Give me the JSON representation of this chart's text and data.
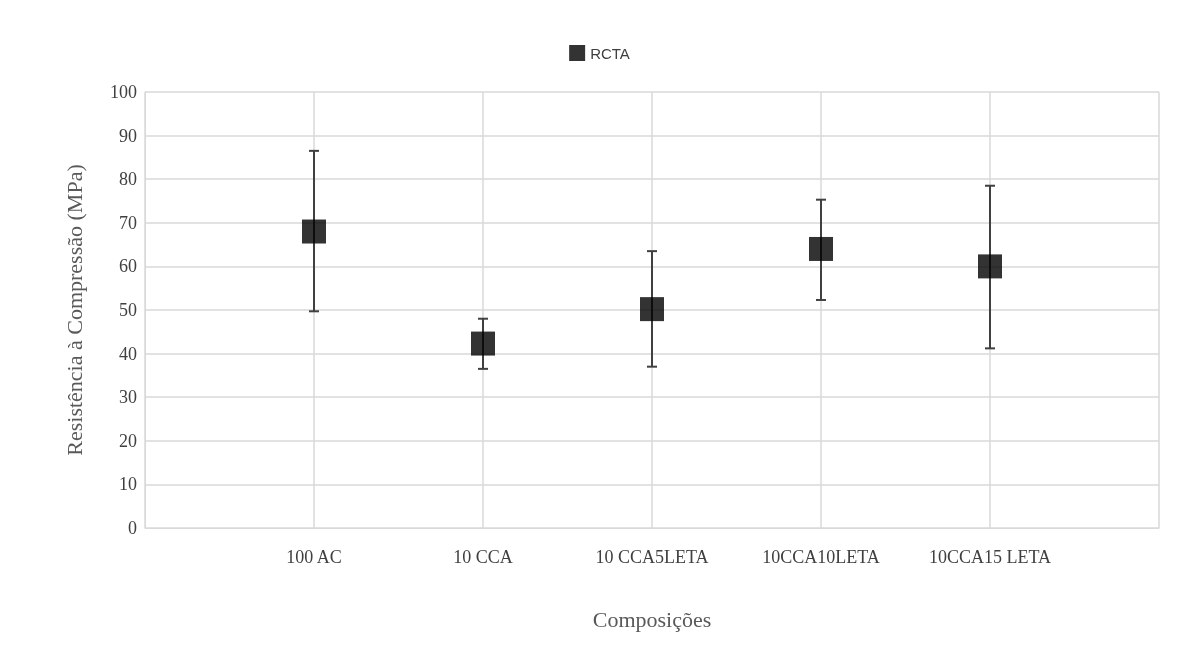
{
  "chart_data": {
    "type": "scatter",
    "xlabel": "Composições",
    "ylabel": "Resistência à Compressão (MPa)",
    "categories": [
      null,
      "100 AC",
      "10 CCA",
      "10 CCA5LETA",
      "10CCA10LETA",
      "10CCA15 LETA",
      null
    ],
    "series": [
      {
        "name": "RCTA",
        "color": "#000000",
        "values": [
          null,
          68,
          42.3,
          50.2,
          64,
          60,
          null
        ],
        "errors": [
          null,
          [
            49.7,
            86.5
          ],
          [
            36.5,
            48
          ],
          [
            37,
            63.5
          ],
          [
            52.3,
            75.3
          ],
          [
            41.2,
            78.5
          ],
          null
        ]
      }
    ],
    "ylim": [
      0,
      100
    ],
    "yticks": [
      0,
      10,
      20,
      30,
      40,
      50,
      60,
      70,
      80,
      90,
      100
    ],
    "grid": true,
    "legend": "top",
    "marker": "square"
  }
}
